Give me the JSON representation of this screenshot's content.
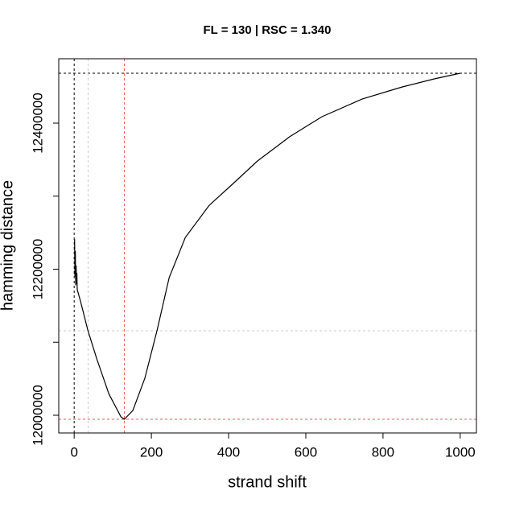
{
  "chart_data": {
    "type": "line",
    "title": "FL =  130 | RSC =  1.340",
    "x_label": "strand shift",
    "y_label": "hamming distance",
    "xlim": [
      -40,
      1042
    ],
    "ylim": [
      11975758,
      12488154
    ],
    "xticks": [
      0,
      200,
      400,
      600,
      800,
      1000
    ],
    "yticks": [
      12000000,
      {
        "value": 12100000,
        "label": null
      },
      12200000,
      {
        "value": 12300000,
        "label": null
      },
      12400000
    ],
    "series": [
      {
        "name": "hamming distance",
        "color": "#000000",
        "x": [
          1,
          2,
          3,
          4,
          5,
          6,
          7,
          8,
          17,
          35,
          58,
          90,
          121,
          130,
          152,
          183,
          215,
          246,
          288,
          350,
          412,
          475,
          558,
          642,
          746,
          850,
          933,
          1000
        ],
        "values": [
          12241000,
          12190000,
          12225000,
          12178000,
          12205000,
          12180000,
          12195000,
          12172000,
          12155000,
          12117000,
          12078000,
          12029000,
          11998000,
          11994500,
          12006600,
          12050700,
          12116800,
          12188400,
          12243500,
          12287600,
          12317400,
          12348200,
          12381300,
          12408800,
          12433000,
          12449600,
          12460600,
          12468300
        ]
      }
    ],
    "reference_lines": [
      {
        "axis": "y",
        "value": 12468300,
        "color": "#000000"
      },
      {
        "axis": "x",
        "value": 0,
        "color": "#000000"
      },
      {
        "axis": "x",
        "value": 36,
        "color": "#cccccc"
      },
      {
        "axis": "y",
        "value": 12115700,
        "color": "#cccccc"
      },
      {
        "axis": "x",
        "value": 130,
        "color": "#ff5555"
      },
      {
        "axis": "y",
        "value": 11994500,
        "color": "#ff5555"
      }
    ]
  }
}
